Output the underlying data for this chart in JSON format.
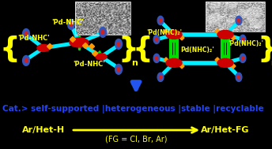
{
  "bg_color": "#000000",
  "white_bg": "#ffffff",
  "yellow": "#ffff00",
  "cyan": "#00eeff",
  "red_pd": "#cc0000",
  "green": "#00dd00",
  "orange": "#ff9900",
  "blue_end": "#3355bb",
  "blue_text": "#2244ff",
  "blue_arrow_color": "#2255ee",
  "title_line": "Cat.> self-supported |heterogeneous |stable |recyclable",
  "reaction_left": "Ar/Het-H",
  "reaction_right": "Ar/Het-FG",
  "reaction_sub": "(FG = Cl, Br, Ar)",
  "lbl_pd1": "'Pd-NHC'",
  "lbl_pd2": "'Pd-NHC'",
  "lbl_pd3": "'Pd-NHC'",
  "lbl_r1": "'Pd(NHC)₂'",
  "lbl_r2": "'Pd(NHC)₂'",
  "lbl_r3": "Pd(NHC)₂'",
  "n_lbl": "n"
}
